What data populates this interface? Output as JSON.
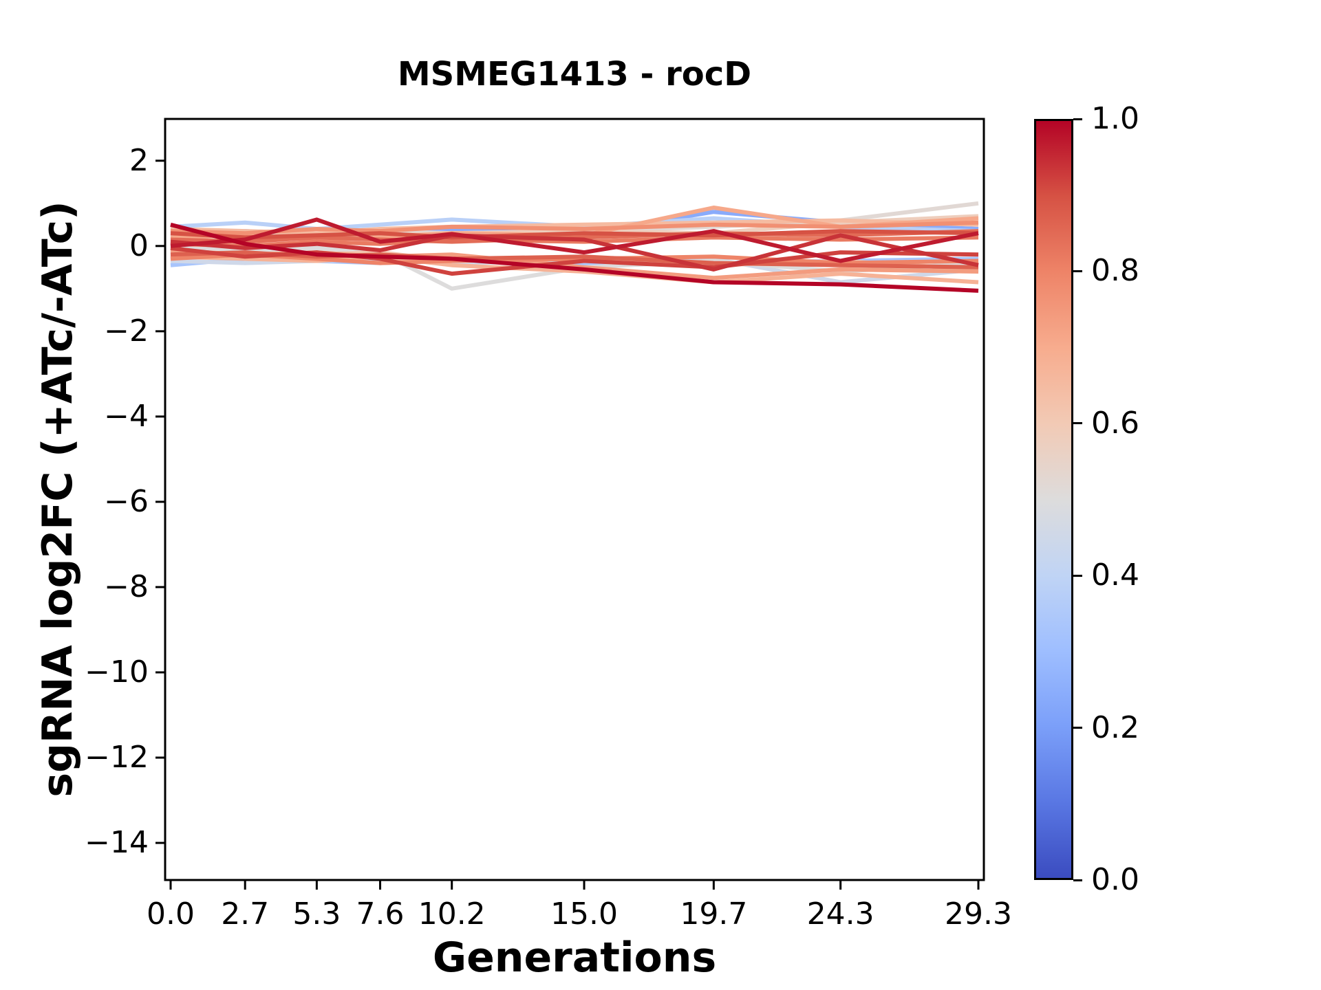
{
  "chart_data": {
    "type": "line",
    "title": "MSMEG1413 - rocD",
    "xlabel": "Generations",
    "ylabel": "sgRNA log2FC (+ATc/-ATc)",
    "x": [
      0.0,
      2.7,
      5.3,
      7.6,
      10.2,
      15.0,
      19.7,
      24.3,
      29.3
    ],
    "xtick_labels": [
      "0.0",
      "2.7",
      "5.3",
      "7.6",
      "10.2",
      "15.0",
      "19.7",
      "24.3",
      "29.3"
    ],
    "ytick_values": [
      2,
      0,
      -2,
      -4,
      -6,
      -8,
      -10,
      -12,
      -14
    ],
    "ytick_labels": [
      "2",
      "0",
      "−2",
      "−4",
      "−6",
      "−8",
      "−10",
      "−12",
      "−14"
    ],
    "xlim": [
      -0.2,
      29.5
    ],
    "ylim": [
      -14.87,
      2.98
    ],
    "grid": false,
    "legend": false,
    "series": [
      {
        "colormap_value": 1.0,
        "values": [
          0.5,
          0.05,
          -0.2,
          -0.25,
          -0.3,
          -0.55,
          -0.85,
          -0.9,
          -1.05
        ]
      },
      {
        "colormap_value": 0.97,
        "values": [
          0.0,
          0.15,
          0.62,
          0.1,
          0.28,
          -0.15,
          0.35,
          -0.35,
          0.3
        ]
      },
      {
        "colormap_value": 0.94,
        "values": [
          0.1,
          -0.05,
          0.05,
          -0.1,
          0.25,
          0.15,
          -0.55,
          0.25,
          -0.45
        ]
      },
      {
        "colormap_value": 0.92,
        "values": [
          -0.05,
          -0.25,
          -0.15,
          -0.3,
          -0.65,
          -0.35,
          -0.5,
          -0.15,
          -0.2
        ]
      },
      {
        "colormap_value": 0.9,
        "values": [
          0.3,
          0.2,
          0.25,
          0.3,
          0.2,
          0.3,
          0.25,
          0.35,
          0.3
        ]
      },
      {
        "colormap_value": 0.87,
        "values": [
          -0.2,
          -0.15,
          -0.25,
          -0.2,
          -0.3,
          -0.25,
          -0.4,
          -0.45,
          -0.5
        ]
      },
      {
        "colormap_value": 0.85,
        "values": [
          0.15,
          0.1,
          0.2,
          0.15,
          0.1,
          0.2,
          0.3,
          0.25,
          0.35
        ]
      },
      {
        "colormap_value": 0.82,
        "values": [
          0.05,
          0.0,
          0.1,
          0.05,
          0.15,
          0.1,
          0.2,
          0.15,
          0.2
        ]
      },
      {
        "colormap_value": 0.8,
        "values": [
          -0.3,
          -0.2,
          -0.3,
          -0.4,
          -0.35,
          -0.3,
          -0.25,
          -0.4,
          -0.35
        ]
      },
      {
        "colormap_value": 0.77,
        "values": [
          0.35,
          0.3,
          0.4,
          0.35,
          0.45,
          0.4,
          0.5,
          0.45,
          0.55
        ]
      },
      {
        "colormap_value": 0.74,
        "values": [
          -0.1,
          -0.2,
          -0.15,
          -0.25,
          -0.2,
          -0.5,
          -0.75,
          -0.55,
          -0.6
        ]
      },
      {
        "colormap_value": 0.71,
        "values": [
          0.2,
          0.25,
          0.15,
          0.2,
          0.3,
          0.25,
          0.9,
          0.45,
          0.65
        ]
      },
      {
        "colormap_value": 0.68,
        "values": [
          -0.25,
          -0.3,
          -0.35,
          -0.25,
          -0.45,
          -0.6,
          -0.85,
          -0.65,
          -0.85
        ]
      },
      {
        "colormap_value": 0.65,
        "values": [
          0.4,
          0.35,
          0.3,
          0.4,
          0.45,
          0.5,
          0.55,
          0.6,
          0.5
        ]
      },
      {
        "colormap_value": 0.62,
        "values": [
          -0.15,
          -0.25,
          -0.2,
          -0.15,
          -0.35,
          -0.3,
          -0.45,
          -0.35,
          -0.55
        ]
      },
      {
        "colormap_value": 0.58,
        "values": [
          0.1,
          0.15,
          0.2,
          0.25,
          0.3,
          0.35,
          0.3,
          0.55,
          0.7
        ]
      },
      {
        "colormap_value": 0.52,
        "values": [
          0.15,
          0.3,
          0.2,
          0.35,
          0.3,
          0.35,
          0.45,
          0.6,
          1.0
        ]
      },
      {
        "colormap_value": 0.5,
        "values": [
          0.0,
          -0.1,
          -0.05,
          -0.15,
          -1.0,
          -0.5,
          -0.35,
          -0.6,
          -0.4
        ]
      },
      {
        "colormap_value": 0.45,
        "values": [
          -0.35,
          -0.4,
          -0.35,
          -0.3,
          -0.4,
          -0.35,
          -0.3,
          -0.85,
          -0.55
        ]
      },
      {
        "colormap_value": 0.38,
        "values": [
          0.45,
          0.55,
          0.4,
          0.5,
          0.62,
          0.45,
          0.65,
          0.45,
          0.35
        ]
      },
      {
        "colormap_value": 0.33,
        "values": [
          -0.45,
          -0.3,
          -0.35,
          -0.4,
          -0.35,
          -0.45,
          -0.4,
          -0.35,
          -0.3
        ]
      },
      {
        "colormap_value": 0.24,
        "values": [
          0.3,
          0.35,
          0.25,
          0.3,
          0.4,
          0.3,
          0.8,
          0.55,
          0.4
        ]
      }
    ],
    "colorbar": {
      "orientation": "vertical",
      "colormap": "coolwarm",
      "range": [
        0.0,
        1.0
      ],
      "tick_values": [
        0.0,
        0.2,
        0.4,
        0.6,
        0.8,
        1.0
      ],
      "tick_labels": [
        "0.0",
        "0.2",
        "0.4",
        "0.6",
        "0.8",
        "1.0"
      ],
      "anchors": [
        {
          "t": 0.0,
          "color": "#3b4cc0"
        },
        {
          "t": 0.1,
          "color": "#5977e3"
        },
        {
          "t": 0.2,
          "color": "#7b9ff9"
        },
        {
          "t": 0.3,
          "color": "#9ebeff"
        },
        {
          "t": 0.4,
          "color": "#c0d4f5"
        },
        {
          "t": 0.5,
          "color": "#dddcdc"
        },
        {
          "t": 0.6,
          "color": "#f2cab5"
        },
        {
          "t": 0.7,
          "color": "#f7ac8e"
        },
        {
          "t": 0.8,
          "color": "#ee8468"
        },
        {
          "t": 0.9,
          "color": "#d65244"
        },
        {
          "t": 1.0,
          "color": "#b40426"
        }
      ]
    },
    "axis_color": "#000000",
    "background_color": "#ffffff"
  }
}
